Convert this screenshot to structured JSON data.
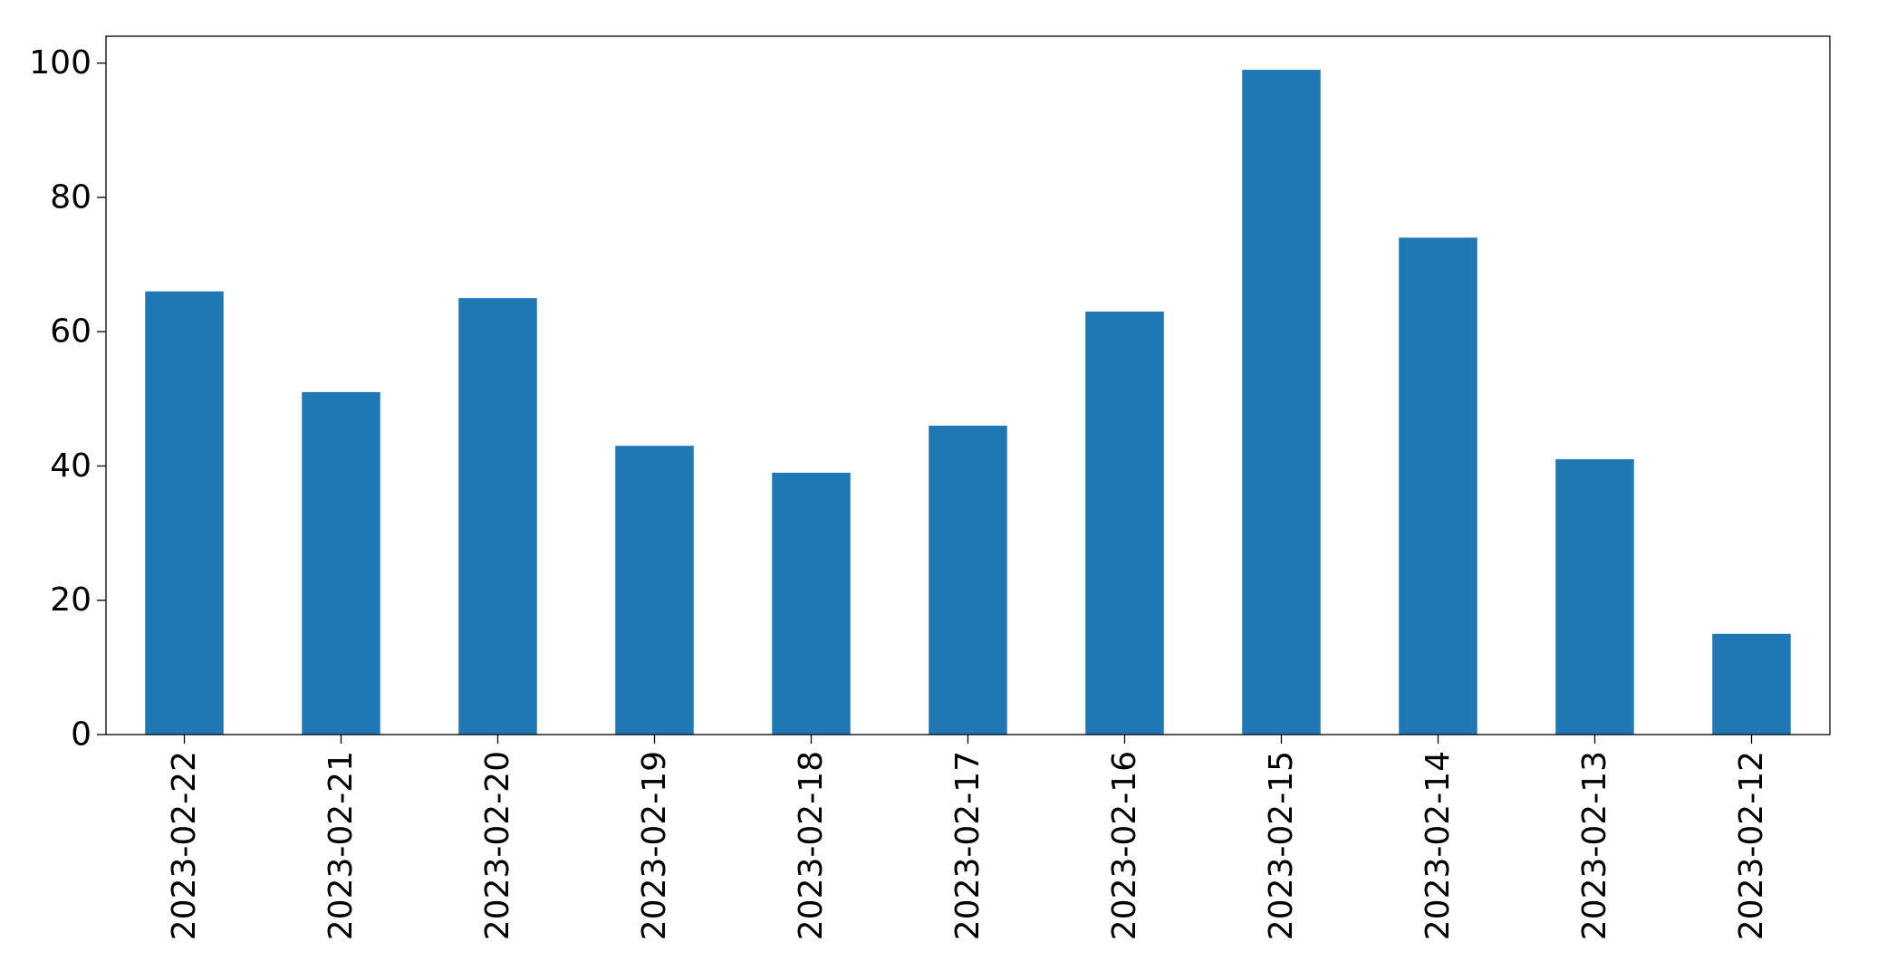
{
  "chart_data": {
    "type": "bar",
    "title": "",
    "xlabel": "",
    "ylabel": "",
    "categories": [
      "2023-02-22",
      "2023-02-21",
      "2023-02-20",
      "2023-02-19",
      "2023-02-18",
      "2023-02-17",
      "2023-02-16",
      "2023-02-15",
      "2023-02-14",
      "2023-02-13",
      "2023-02-12"
    ],
    "values": [
      66,
      51,
      65,
      43,
      39,
      46,
      63,
      99,
      74,
      41,
      15
    ],
    "ylim": [
      0,
      104
    ],
    "yticks": [
      0,
      20,
      40,
      60,
      80,
      100
    ],
    "bar_color": "#1f77b4",
    "grid": false,
    "legend": "none"
  }
}
